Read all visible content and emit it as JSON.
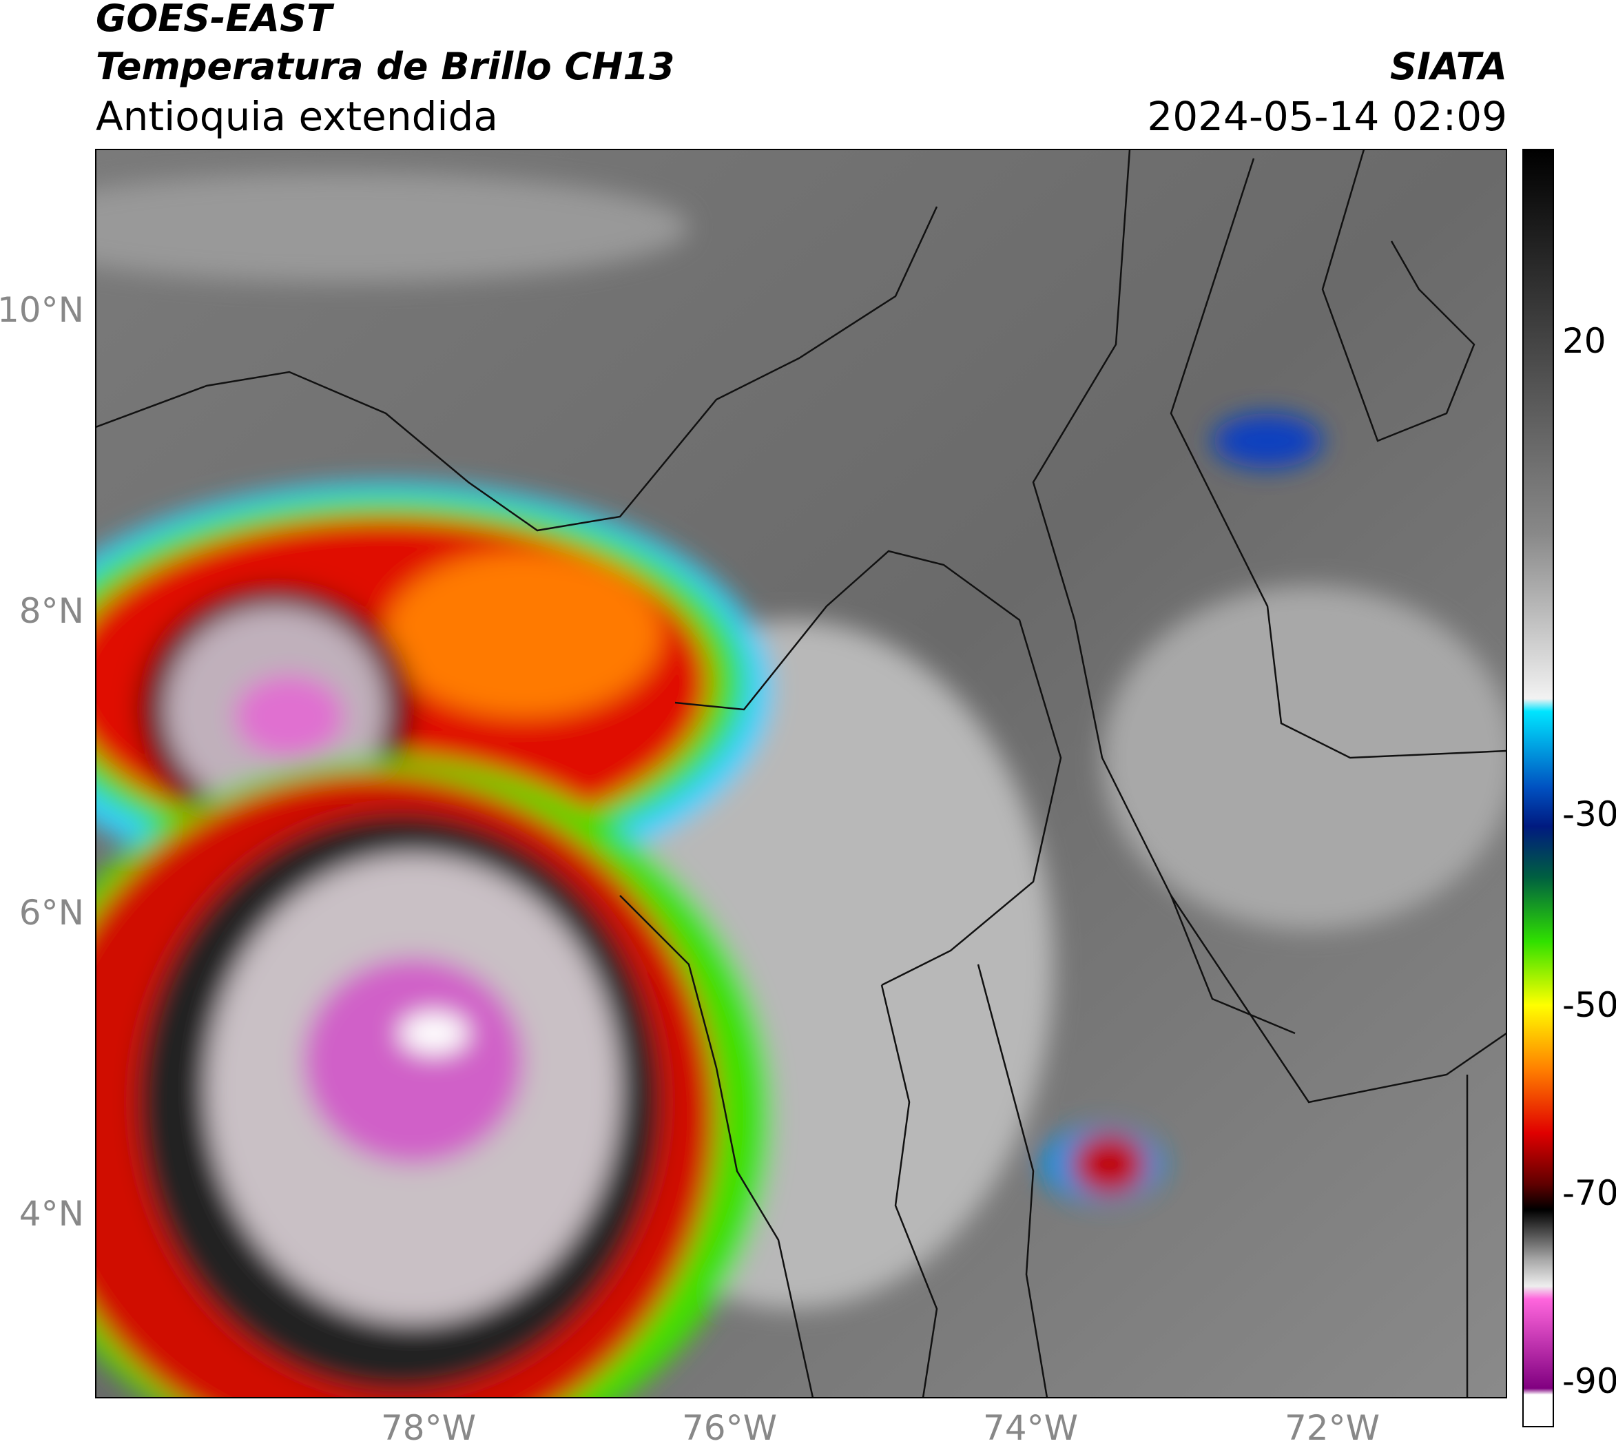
{
  "header": {
    "title": "GOES-EAST",
    "subtitle": "Temperatura de Brillo CH13",
    "region": "Antioquia extendida",
    "agency": "SIATA",
    "datetime": "2024-05-14 02:09"
  },
  "map": {
    "lat_labels": [
      "10°N",
      "8°N",
      "6°N",
      "4°N"
    ],
    "lon_labels": [
      "78°W",
      "76°W",
      "74°W",
      "72°W"
    ]
  },
  "colorbar": {
    "labels": [
      "20",
      "-30",
      "-50",
      "-70",
      "-90"
    ]
  }
}
